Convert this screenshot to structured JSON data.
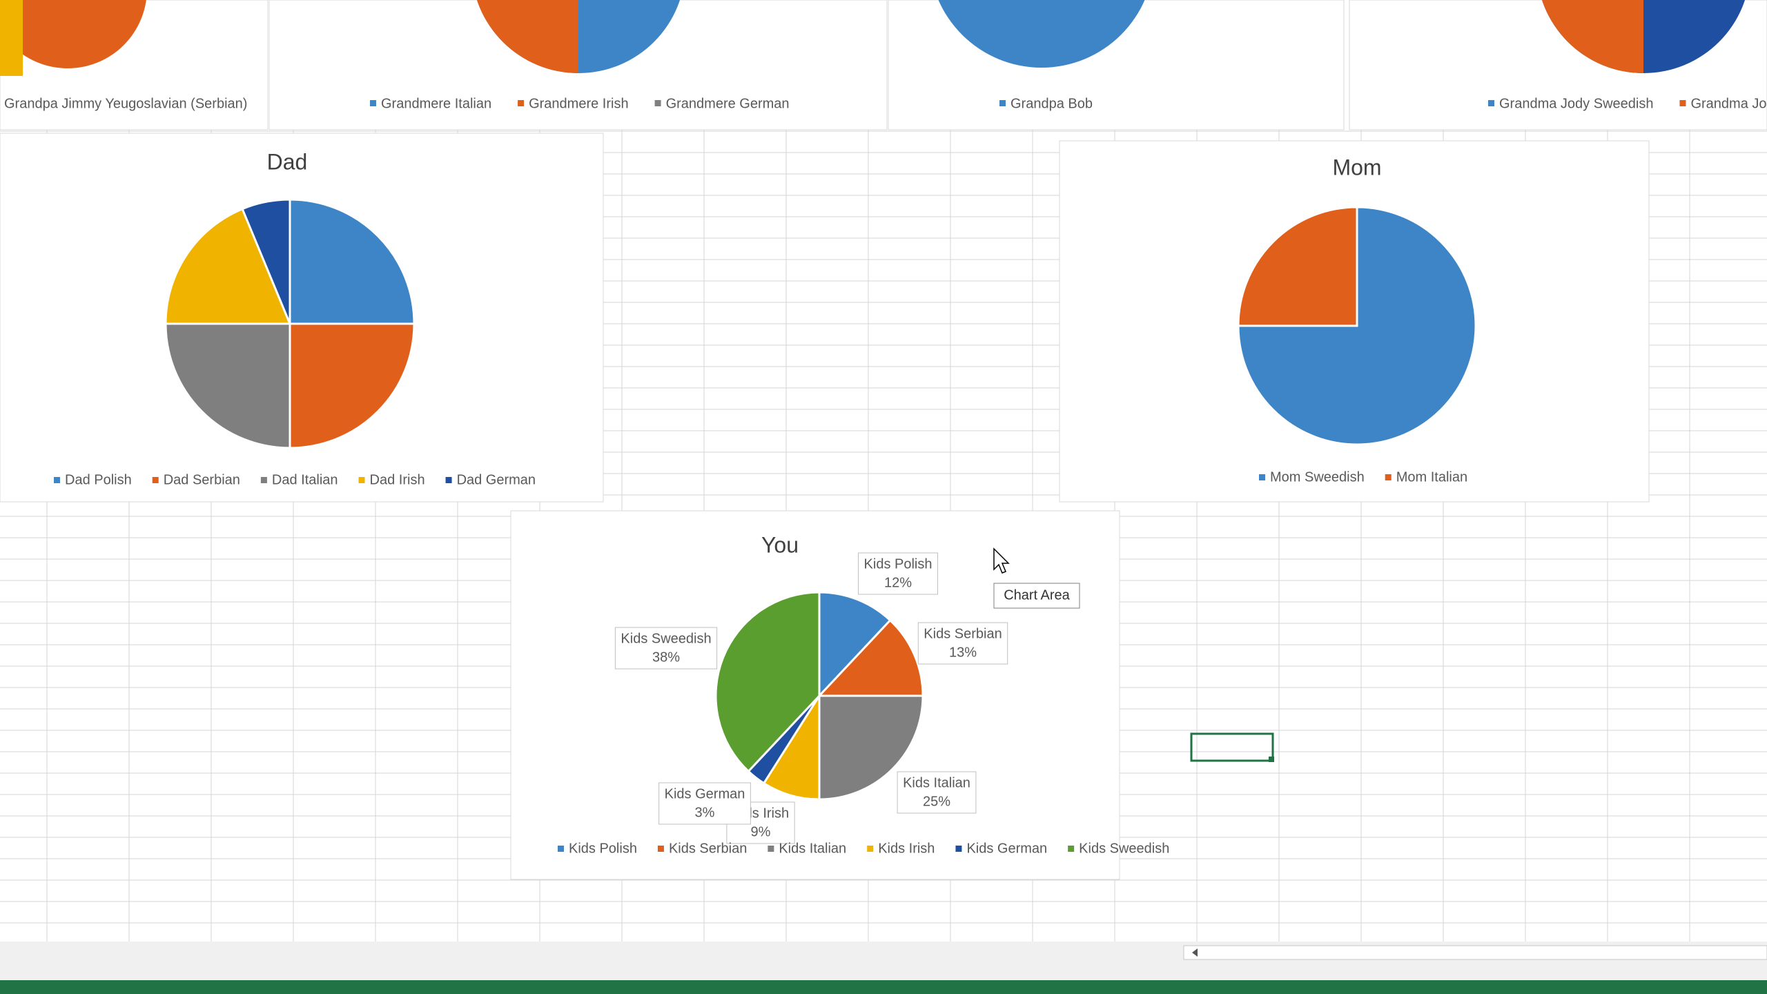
{
  "header_charts": [
    {
      "legend": [
        "Grandpa Jimmy Yeugoslavian (Serbian)"
      ]
    },
    {
      "legend": [
        "Grandmere Italian",
        "Grandmere Irish",
        "Grandmere German"
      ]
    },
    {
      "legend": [
        "Grandpa Bob"
      ]
    },
    {
      "legend": [
        "Grandma Jody Sweedish",
        "Grandma Jody"
      ]
    }
  ],
  "chart_data": [
    {
      "type": "pie",
      "title": "Dad",
      "categories": [
        "Dad Polish",
        "Dad Serbian",
        "Dad Italian",
        "Dad Irish",
        "Dad German"
      ],
      "values": [
        25,
        25,
        25,
        18.75,
        6.25
      ],
      "colors": [
        "#3d85c6",
        "#e0601b",
        "#7f7f7f",
        "#f0b400",
        "#1f4fa0"
      ],
      "legend": "bottom"
    },
    {
      "type": "pie",
      "title": "Mom",
      "categories": [
        "Mom Sweedish",
        "Mom Italian"
      ],
      "values": [
        75,
        25
      ],
      "colors": [
        "#3d85c6",
        "#e0601b"
      ],
      "legend": "bottom"
    },
    {
      "type": "pie",
      "title": "You",
      "categories": [
        "Kids Polish",
        "Kids Serbian",
        "Kids Italian",
        "Kids Irish",
        "Kids German",
        "Kids Sweedish"
      ],
      "values": [
        12,
        13,
        25,
        9,
        3,
        38
      ],
      "value_labels": [
        "12%",
        "13%",
        "25%",
        "9%",
        "3%",
        "38%"
      ],
      "colors": [
        "#3d85c6",
        "#e0601b",
        "#7f7f7f",
        "#f0b400",
        "#1f4fa0",
        "#5a9e2f"
      ],
      "legend": "bottom"
    }
  ],
  "tooltip": "Chart Area"
}
